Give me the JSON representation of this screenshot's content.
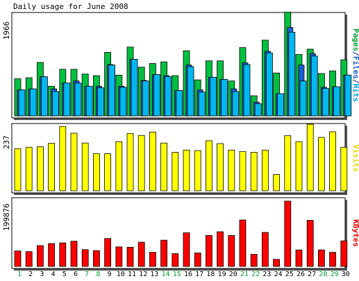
{
  "chart_data": [
    {
      "type": "bar",
      "title": "Daily usage for June 2008",
      "ymax_label": "1966",
      "ylabel_parts": [
        {
          "text": "Pages",
          "color": "#00a030"
        },
        {
          "text": "/",
          "color": "#0b1e8a"
        },
        {
          "text": "Files",
          "color": "#1a5fd0"
        },
        {
          "text": "/",
          "color": "#0b1e8a"
        },
        {
          "text": "Hits",
          "color": "#00a0d8"
        }
      ],
      "ylim": [
        0,
        1966
      ],
      "categories": [
        "1",
        "2",
        "3",
        "4",
        "5",
        "6",
        "7",
        "8",
        "9",
        "10",
        "11",
        "12",
        "13",
        "14",
        "15",
        "16",
        "17",
        "18",
        "19",
        "20",
        "21",
        "22",
        "23",
        "24",
        "25",
        "26",
        "27",
        "28",
        "29",
        "30"
      ],
      "weekend_days": [
        "1",
        "7",
        "8",
        "14",
        "15",
        "21",
        "22",
        "28",
        "29"
      ],
      "series": [
        {
          "key": "pages",
          "color": "#00c040",
          "values": [
            700,
            720,
            1010,
            560,
            880,
            880,
            790,
            760,
            1200,
            770,
            1300,
            920,
            990,
            1020,
            760,
            1230,
            680,
            1040,
            1040,
            660,
            1290,
            380,
            1430,
            810,
            1960,
            1160,
            1260,
            800,
            850,
            1060
          ]
        },
        {
          "key": "files",
          "color": "#1a5fd0",
          "values": [
            490,
            510,
            740,
            510,
            620,
            660,
            560,
            560,
            970,
            560,
            1070,
            670,
            780,
            760,
            480,
            960,
            490,
            730,
            690,
            510,
            1000,
            260,
            1220,
            420,
            1670,
            960,
            1180,
            540,
            550,
            770
          ]
        },
        {
          "key": "hits",
          "color": "#00b8f0",
          "values": [
            490,
            510,
            740,
            460,
            620,
            620,
            560,
            530,
            960,
            540,
            1070,
            660,
            780,
            740,
            480,
            930,
            450,
            730,
            690,
            460,
            970,
            230,
            1190,
            420,
            1580,
            660,
            1130,
            520,
            550,
            770
          ]
        }
      ]
    },
    {
      "type": "bar",
      "ymax_label": "237",
      "ylabel_parts": [
        {
          "text": "Visits",
          "color": "#e8d800"
        }
      ],
      "ylim": [
        0,
        237
      ],
      "categories": [
        "1",
        "2",
        "3",
        "4",
        "5",
        "6",
        "7",
        "8",
        "9",
        "10",
        "11",
        "12",
        "13",
        "14",
        "15",
        "16",
        "17",
        "18",
        "19",
        "20",
        "21",
        "22",
        "23",
        "24",
        "25",
        "26",
        "27",
        "28",
        "29",
        "30"
      ],
      "series": [
        {
          "key": "visits",
          "color": "#ffff00",
          "values": [
            150,
            155,
            157,
            169,
            229,
            205,
            170,
            132,
            132,
            175,
            204,
            197,
            209,
            170,
            137,
            145,
            143,
            178,
            168,
            145,
            140,
            137,
            145,
            58,
            196,
            175,
            237,
            190,
            210,
            155
          ]
        }
      ]
    },
    {
      "type": "bar",
      "ymax_label": "199876",
      "ylabel_parts": [
        {
          "text": "KBytes",
          "color": "#e80000"
        }
      ],
      "ylim": [
        0,
        199876
      ],
      "categories": [
        "1",
        "2",
        "3",
        "4",
        "5",
        "6",
        "7",
        "8",
        "9",
        "10",
        "11",
        "12",
        "13",
        "14",
        "15",
        "16",
        "17",
        "18",
        "19",
        "20",
        "21",
        "22",
        "23",
        "24",
        "25",
        "26",
        "27",
        "28",
        "29",
        "30"
      ],
      "series": [
        {
          "key": "kbytes",
          "color": "#ff0000",
          "values": [
            46000,
            44000,
            62000,
            68000,
            70000,
            75000,
            50000,
            47000,
            83000,
            58000,
            57000,
            72000,
            42000,
            78000,
            38000,
            100000,
            40000,
            92000,
            103000,
            92000,
            138000,
            36000,
            101000,
            21000,
            194000,
            49000,
            137000,
            49000,
            42000,
            76000
          ]
        }
      ]
    }
  ]
}
